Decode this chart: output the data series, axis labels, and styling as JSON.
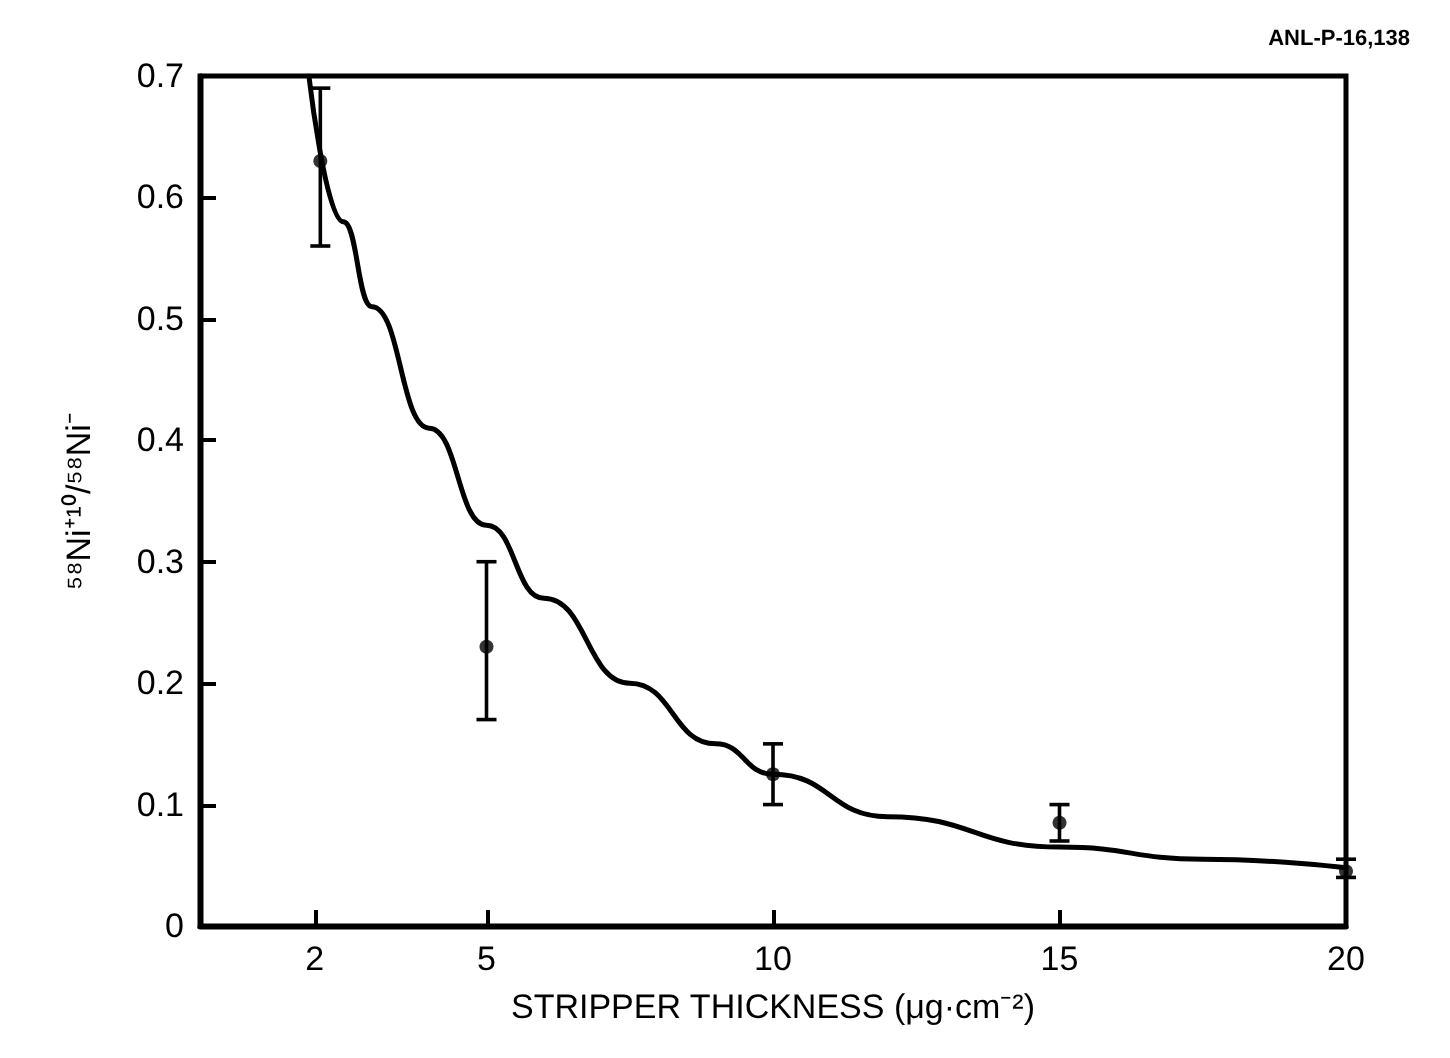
{
  "chart_data": {
    "type": "scatter",
    "xlabel": "STRIPPER THICKNESS (μg·cm⁻²)",
    "ylabel": "⁵⁸Ni⁺¹⁰/⁵⁸Ni⁻",
    "annotations": [
      "ANL-P-16,138"
    ],
    "xlim": [
      0,
      20
    ],
    "ylim": [
      0,
      0.7
    ],
    "xticks": [
      2,
      5,
      10,
      15,
      20
    ],
    "yticks": [
      0,
      0.1,
      0.2,
      0.3,
      0.4,
      0.5,
      0.6,
      0.7
    ],
    "grid": false,
    "marker": "circle",
    "series": [
      {
        "color": "#000000",
        "x": [
          2.1,
          5,
          10,
          15,
          20
        ],
        "values": [
          0.63,
          0.23,
          0.125,
          0.085,
          0.045
        ],
        "errors": [
          [
            0.56,
            0.69
          ],
          [
            0.17,
            0.3
          ],
          [
            0.1,
            0.15
          ],
          [
            0.07,
            0.1
          ],
          [
            0.04,
            0.055
          ]
        ]
      },
      {
        "type": "line",
        "color": "#000000",
        "marker": "none",
        "line_style": "solid",
        "x": [
          1.9,
          2.5,
          3,
          4,
          5,
          6,
          7.5,
          9,
          10,
          12,
          15,
          17.5,
          20
        ],
        "values": [
          0.7,
          0.58,
          0.51,
          0.41,
          0.33,
          0.27,
          0.2,
          0.15,
          0.125,
          0.09,
          0.065,
          0.055,
          0.048
        ]
      }
    ]
  }
}
